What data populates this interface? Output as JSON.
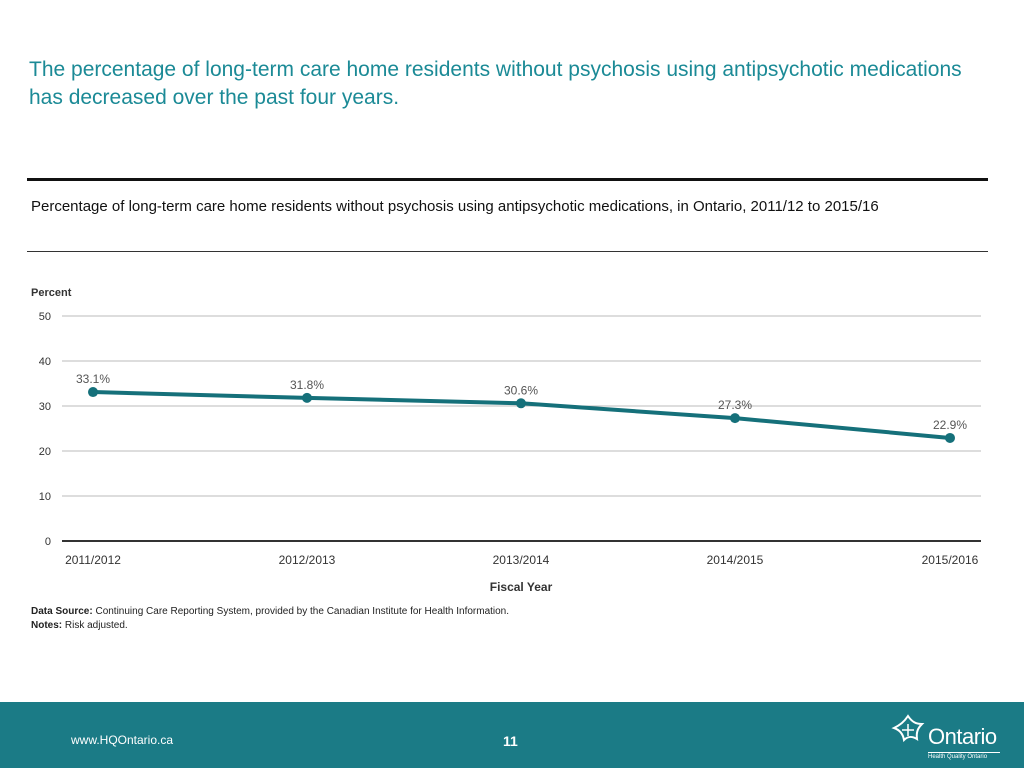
{
  "slide": {
    "headline": "The percentage of long-term care home residents without psychosis using antipsychotic medications has decreased over the past four years.",
    "chart_title": "Percentage of long-term care home residents without psychosis using antipsychotic medications, in Ontario, 2011/12 to 2015/16",
    "data_source_label": "Data Source:",
    "data_source_text": " Continuing Care Reporting System, provided by the Canadian Institute for Health Information.",
    "notes_label": "Notes:",
    "notes_text": " Risk adjusted.",
    "footer_url": "www.HQOntario.ca",
    "page_number": "11",
    "logo_word": "Ontario",
    "logo_sub": "Health Quality Ontario"
  },
  "colors": {
    "headline": "#1b8a96",
    "series": "#15707a",
    "footer": "#1b7b86"
  },
  "chart_data": {
    "type": "line",
    "title": "",
    "xlabel": "Fiscal Year",
    "ylabel": "Percent",
    "categories": [
      "2011/2012",
      "2012/2013",
      "2013/2014",
      "2014/2015",
      "2015/2016"
    ],
    "series": [
      {
        "name": "",
        "values": [
          33.1,
          31.8,
          30.6,
          27.3,
          22.9
        ]
      }
    ],
    "data_labels": [
      "33.1%",
      "31.8%",
      "30.6%",
      "27.3%",
      "22.9%"
    ],
    "ylim": [
      0,
      50
    ],
    "yticks": [
      0,
      10,
      20,
      30,
      40,
      50
    ],
    "grid": true,
    "legend": "none"
  }
}
